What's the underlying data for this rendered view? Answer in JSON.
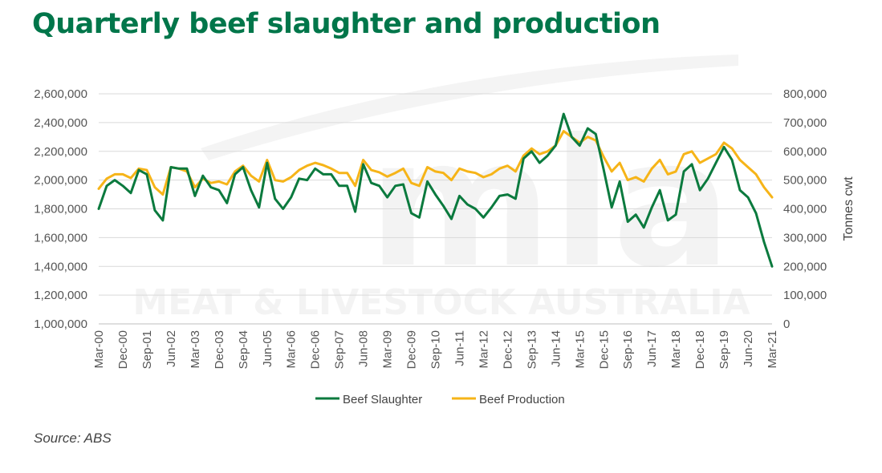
{
  "title": "Quarterly beef slaughter and production",
  "source": "Source: ABS",
  "watermark": {
    "logo_text": "mla",
    "org_text": "MEAT & LIVESTOCK AUSTRALIA"
  },
  "chart_data": {
    "type": "line",
    "title": "Quarterly beef slaughter and production",
    "xlabel": "",
    "ylabel_left": "",
    "ylabel_right": "Tonnes cwt",
    "ylim_left": [
      1000000,
      2600000
    ],
    "ylim_right": [
      0,
      800000
    ],
    "y_ticks_left": [
      "1,000,000",
      "1,200,000",
      "1,400,000",
      "1,600,000",
      "1,800,000",
      "2,000,000",
      "2,200,000",
      "2,400,000",
      "2,600,000"
    ],
    "y_ticks_right": [
      "0",
      "100,000",
      "200,000",
      "300,000",
      "400,000",
      "500,000",
      "600,000",
      "700,000",
      "800,000"
    ],
    "x_tick_labels": [
      "Mar-00",
      "Dec-00",
      "Sep-01",
      "Jun-02",
      "Mar-03",
      "Dec-03",
      "Sep-04",
      "Jun-05",
      "Mar-06",
      "Dec-06",
      "Sep-07",
      "Jun-08",
      "Mar-09",
      "Dec-09",
      "Sep-10",
      "Jun-11",
      "Mar-12",
      "Dec-12",
      "Sep-13",
      "Jun-14",
      "Mar-15",
      "Dec-15",
      "Sep-16",
      "Jun-17",
      "Mar-18",
      "Dec-18",
      "Sep-19",
      "Jun-20",
      "Mar-21"
    ],
    "grid": true,
    "legend_position": "bottom",
    "series": [
      {
        "name": "Beef Slaughter",
        "axis": "left",
        "color": "#0B7A3E",
        "values": [
          1800000,
          1960000,
          2000000,
          1960000,
          1910000,
          2070000,
          2040000,
          1790000,
          1720000,
          2090000,
          2080000,
          2080000,
          1890000,
          2030000,
          1950000,
          1930000,
          1840000,
          2040000,
          2090000,
          1930000,
          1810000,
          2120000,
          1870000,
          1800000,
          1880000,
          2010000,
          2000000,
          2080000,
          2040000,
          2040000,
          1960000,
          1960000,
          1780000,
          2110000,
          1980000,
          1960000,
          1880000,
          1960000,
          1970000,
          1770000,
          1740000,
          1990000,
          1900000,
          1820000,
          1730000,
          1890000,
          1830000,
          1800000,
          1740000,
          1810000,
          1890000,
          1900000,
          1870000,
          2150000,
          2200000,
          2120000,
          2170000,
          2240000,
          2460000,
          2300000,
          2240000,
          2360000,
          2320000,
          2070000,
          1810000,
          1990000,
          1710000,
          1760000,
          1670000,
          1810000,
          1930000,
          1720000,
          1760000,
          2060000,
          2110000,
          1930000,
          2010000,
          2120000,
          2230000,
          2140000,
          1930000,
          1880000,
          1770000,
          1570000,
          1400000
        ]
      },
      {
        "name": "Beef Production",
        "axis": "right",
        "color": "#F6B418",
        "values": [
          470000,
          505000,
          520000,
          520000,
          507000,
          540000,
          535000,
          475000,
          450000,
          545000,
          540000,
          530000,
          475000,
          505000,
          490000,
          495000,
          485000,
          530000,
          550000,
          515000,
          495000,
          570000,
          500000,
          495000,
          510000,
          535000,
          550000,
          560000,
          552000,
          540000,
          525000,
          525000,
          480000,
          570000,
          535000,
          527000,
          512000,
          525000,
          540000,
          490000,
          480000,
          545000,
          530000,
          525000,
          500000,
          540000,
          530000,
          525000,
          510000,
          520000,
          540000,
          550000,
          530000,
          585000,
          610000,
          590000,
          600000,
          620000,
          670000,
          650000,
          630000,
          650000,
          638000,
          580000,
          530000,
          560000,
          500000,
          510000,
          495000,
          540000,
          570000,
          520000,
          530000,
          590000,
          600000,
          560000,
          575000,
          590000,
          630000,
          610000,
          570000,
          545000,
          520000,
          475000,
          440000
        ]
      }
    ]
  }
}
